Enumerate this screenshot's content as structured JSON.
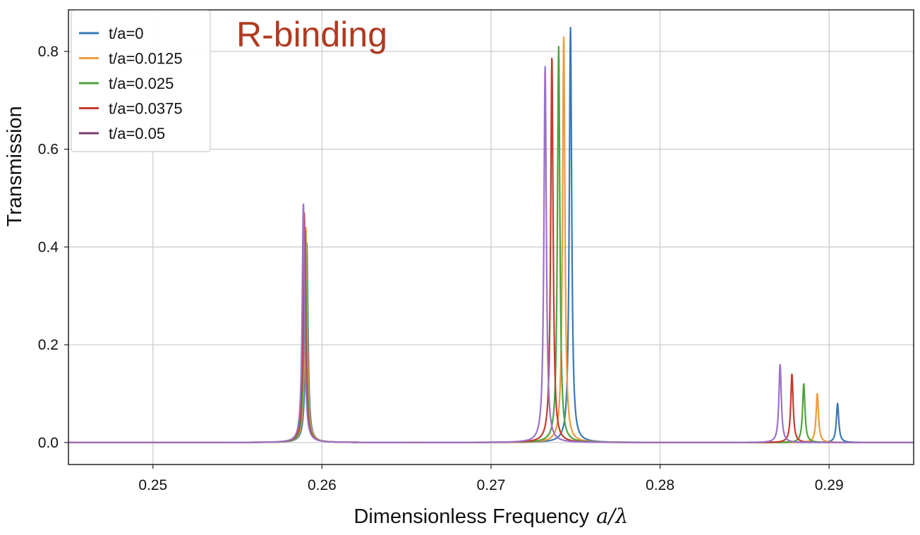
{
  "chart_data": {
    "type": "line",
    "title": "",
    "annotation": "R-binding",
    "annotation_color": "#b03a22",
    "xlabel": "Dimensionless Frequency",
    "xlabel_math": "a/λ",
    "ylabel": "Transmission",
    "xlim": [
      0.245,
      0.295
    ],
    "ylim": [
      -0.045,
      0.885
    ],
    "xticks": [
      0.25,
      0.26,
      0.27,
      0.28,
      0.29
    ],
    "xtick_labels": [
      "0.25",
      "0.26",
      "0.27",
      "0.28",
      "0.29"
    ],
    "yticks": [
      0.0,
      0.2,
      0.4,
      0.6,
      0.8
    ],
    "ytick_labels": [
      "0.0",
      "0.2",
      "0.4",
      "0.6",
      "0.8"
    ],
    "grid": true,
    "legend_position": "top-left",
    "series": [
      {
        "name": "t/a=0",
        "color": "#3a78b5",
        "peaks": [
          {
            "x": 0.2591,
            "y": 0.41
          },
          {
            "x": 0.2747,
            "y": 0.85
          },
          {
            "x": 0.2905,
            "y": 0.08
          }
        ]
      },
      {
        "name": "t/a=0.0125",
        "color": "#f09a3e",
        "peaks": [
          {
            "x": 0.25905,
            "y": 0.44
          },
          {
            "x": 0.2743,
            "y": 0.83
          },
          {
            "x": 0.2893,
            "y": 0.1
          }
        ]
      },
      {
        "name": "t/a=0.025",
        "color": "#4ea43e",
        "peaks": [
          {
            "x": 0.259,
            "y": 0.43
          },
          {
            "x": 0.274,
            "y": 0.81
          },
          {
            "x": 0.2885,
            "y": 0.12
          }
        ]
      },
      {
        "name": "t/a=0.0375",
        "color": "#c73a2e",
        "peaks": [
          {
            "x": 0.25895,
            "y": 0.47
          },
          {
            "x": 0.2736,
            "y": 0.79
          },
          {
            "x": 0.2878,
            "y": 0.14
          }
        ]
      },
      {
        "name": "t/a=0.05",
        "color": "#7b3c6e",
        "plot_color": "#9b72c7",
        "peaks": [
          {
            "x": 0.2589,
            "y": 0.49
          },
          {
            "x": 0.2732,
            "y": 0.77
          },
          {
            "x": 0.2871,
            "y": 0.16
          }
        ]
      }
    ]
  }
}
